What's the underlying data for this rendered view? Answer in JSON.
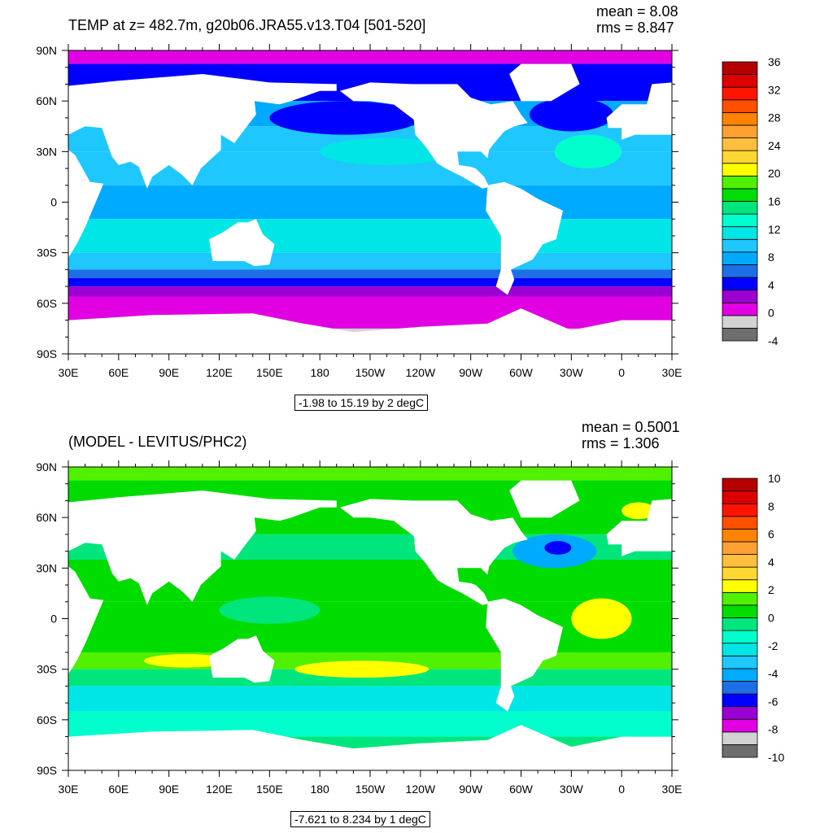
{
  "chart_data": [
    {
      "type": "heatmap",
      "title": "TEMP at z= 482.7m, g20b06.JRA55.v13.T04 [501-520]",
      "stats": {
        "mean": "mean = 8.08",
        "rms": "rms = 8.847"
      },
      "range_label": "-1.98 to 15.19 by 2 degC",
      "x_ticks": [
        "30E",
        "60E",
        "90E",
        "120E",
        "150E",
        "180",
        "150W",
        "120W",
        "90W",
        "60W",
        "30W",
        "0",
        "30E"
      ],
      "y_ticks": [
        "90N",
        "60N",
        "30N",
        "0",
        "30S",
        "60S",
        "90S"
      ],
      "xlim": [
        30,
        390
      ],
      "ylim": [
        -90,
        90
      ],
      "colorbar": {
        "levels": [
          -4,
          0,
          4,
          8,
          12,
          16,
          20,
          24,
          28,
          32,
          36
        ],
        "labels": [
          "-4",
          "0",
          "4",
          "8",
          "12",
          "16",
          "20",
          "24",
          "28",
          "32",
          "36"
        ],
        "colors": [
          "#6e6e6e",
          "#d2d2d2",
          "#e100e1",
          "#9b00d2",
          "#0000ff",
          "#1e6ee6",
          "#00aaff",
          "#1ec8ff",
          "#00e6e6",
          "#00ffcd",
          "#00e67d",
          "#00dc00",
          "#50f000",
          "#ffff00",
          "#ffd732",
          "#ffbe3c",
          "#ffa032",
          "#ff8200",
          "#ff5000",
          "#ff1400",
          "#dc0000",
          "#b40000"
        ]
      }
    },
    {
      "type": "heatmap",
      "title": "(MODEL - LEVITUS/PHC2)",
      "stats": {
        "mean": "mean = 0.5001",
        "rms": "rms = 1.306"
      },
      "range_label": "-7.621 to 8.234 by 1 degC",
      "x_ticks": [
        "30E",
        "60E",
        "90E",
        "120E",
        "150E",
        "180",
        "150W",
        "120W",
        "90W",
        "60W",
        "30W",
        "0",
        "30E"
      ],
      "y_ticks": [
        "90N",
        "60N",
        "30N",
        "0",
        "30S",
        "60S",
        "90S"
      ],
      "xlim": [
        30,
        390
      ],
      "ylim": [
        -90,
        90
      ],
      "colorbar": {
        "levels": [
          -10,
          -8,
          -6,
          -4,
          -2,
          0,
          2,
          4,
          6,
          8,
          10
        ],
        "labels": [
          "-10",
          "-8",
          "-6",
          "-4",
          "-2",
          "0",
          "2",
          "4",
          "6",
          "8",
          "10"
        ],
        "colors": [
          "#6e6e6e",
          "#d2d2d2",
          "#e100e1",
          "#9b00d2",
          "#0000ff",
          "#1e6ee6",
          "#00aaff",
          "#1ec8ff",
          "#00e6e6",
          "#00ffcd",
          "#00e67d",
          "#00dc00",
          "#50f000",
          "#ffff00",
          "#ffd732",
          "#ffbe3c",
          "#ffa032",
          "#ff8200",
          "#ff5000",
          "#ff1400",
          "#dc0000",
          "#b40000"
        ]
      }
    }
  ]
}
